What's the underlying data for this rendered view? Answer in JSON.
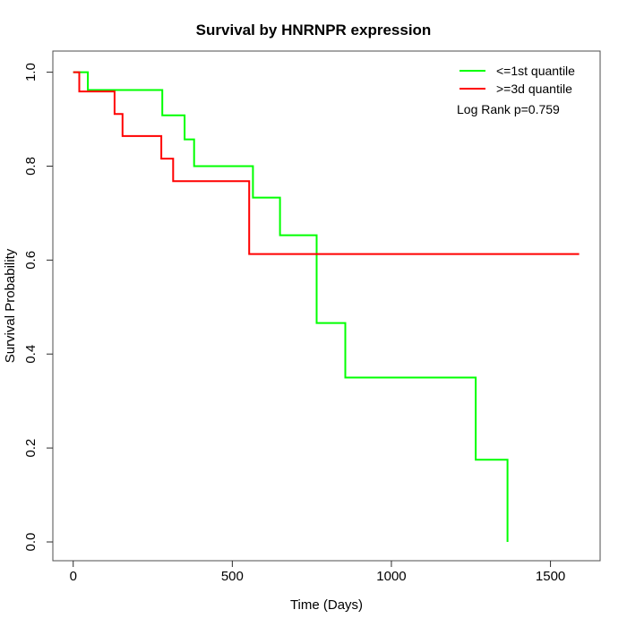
{
  "figure": {
    "background": "#ffffff"
  },
  "chart_data": {
    "type": "line",
    "chart_style": "kaplan-meier-step",
    "title": "Survival by HNRNPR expression",
    "xlabel": "Time (Days)",
    "ylabel": "Survival Probability",
    "xlim": [
      -64,
      1656
    ],
    "ylim": [
      -0.04,
      1.045
    ],
    "xticks": [
      0,
      500,
      1000,
      1500
    ],
    "yticks": [
      "0.0",
      "0.2",
      "0.4",
      "0.6",
      "0.8",
      "1.0"
    ],
    "grid": false,
    "legend_position": "top-right-inside",
    "annotation": "Log Rank p=0.759",
    "axis_color": "#4d4d4d",
    "tick_color": "#2b2b2b",
    "text_color": "#000000",
    "series": [
      {
        "name": "<=1st quantile",
        "color": "#00ff00",
        "points": [
          [
            0,
            1.0
          ],
          [
            46,
            0.962
          ],
          [
            280,
            0.908
          ],
          [
            350,
            0.857
          ],
          [
            380,
            0.8
          ],
          [
            565,
            0.733
          ],
          [
            650,
            0.653
          ],
          [
            765,
            0.466
          ],
          [
            855,
            0.35
          ],
          [
            1265,
            0.175
          ],
          [
            1365,
            0.0
          ]
        ]
      },
      {
        "name": ">=3d quantile",
        "color": "#ff0000",
        "points": [
          [
            0,
            1.0
          ],
          [
            19,
            0.959
          ],
          [
            130,
            0.911
          ],
          [
            155,
            0.864
          ],
          [
            277,
            0.816
          ],
          [
            314,
            0.768
          ],
          [
            553,
            0.613
          ],
          [
            1590,
            0.613
          ]
        ]
      }
    ]
  }
}
